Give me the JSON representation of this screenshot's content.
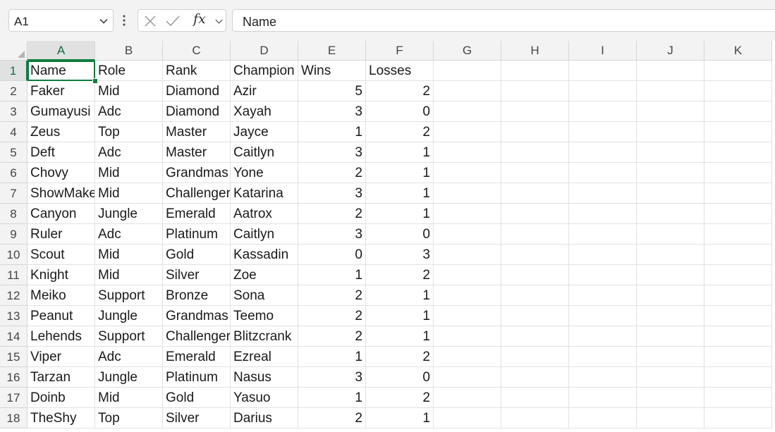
{
  "formula_bar": {
    "name_box": "A1",
    "fx_label": "fx",
    "formula_value": "Name"
  },
  "columns": [
    "A",
    "B",
    "C",
    "D",
    "E",
    "F",
    "G",
    "H",
    "I",
    "J",
    "K"
  ],
  "rows": [
    {
      "num": "1",
      "cells": [
        "Name",
        "Role",
        "Rank",
        "Champion",
        "Wins",
        "Losses"
      ]
    },
    {
      "num": "2",
      "cells": [
        "Faker",
        "Mid",
        "Diamond",
        "Azir",
        "5",
        "2"
      ]
    },
    {
      "num": "3",
      "cells": [
        "Gumayusi",
        "Adc",
        "Diamond",
        "Xayah",
        "3",
        "0"
      ]
    },
    {
      "num": "4",
      "cells": [
        "Zeus",
        "Top",
        "Master",
        "Jayce",
        "1",
        "2"
      ]
    },
    {
      "num": "5",
      "cells": [
        "Deft",
        "Adc",
        "Master",
        "Caitlyn",
        "3",
        "1"
      ]
    },
    {
      "num": "6",
      "cells": [
        "Chovy",
        "Mid",
        "Grandmas",
        "Yone",
        "2",
        "1"
      ]
    },
    {
      "num": "7",
      "cells": [
        "ShowMake",
        "Mid",
        "Challenger",
        "Katarina",
        "3",
        "1"
      ]
    },
    {
      "num": "8",
      "cells": [
        "Canyon",
        "Jungle",
        "Emerald",
        "Aatrox",
        "2",
        "1"
      ]
    },
    {
      "num": "9",
      "cells": [
        "Ruler",
        "Adc",
        "Platinum",
        "Caitlyn",
        "3",
        "0"
      ]
    },
    {
      "num": "10",
      "cells": [
        "Scout",
        "Mid",
        "Gold",
        "Kassadin",
        "0",
        "3"
      ]
    },
    {
      "num": "11",
      "cells": [
        "Knight",
        "Mid",
        "Silver",
        "Zoe",
        "1",
        "2"
      ]
    },
    {
      "num": "12",
      "cells": [
        "Meiko",
        "Support",
        "Bronze",
        "Sona",
        "2",
        "1"
      ]
    },
    {
      "num": "13",
      "cells": [
        "Peanut",
        "Jungle",
        "Grandmas",
        "Teemo",
        "2",
        "1"
      ]
    },
    {
      "num": "14",
      "cells": [
        "Lehends",
        "Support",
        "Challenger",
        "Blitzcrank",
        "2",
        "1"
      ]
    },
    {
      "num": "15",
      "cells": [
        "Viper",
        "Adc",
        "Emerald",
        "Ezreal",
        "1",
        "2"
      ]
    },
    {
      "num": "16",
      "cells": [
        "Tarzan",
        "Jungle",
        "Platinum",
        "Nasus",
        "3",
        "0"
      ]
    },
    {
      "num": "17",
      "cells": [
        "Doinb",
        "Mid",
        "Gold",
        "Yasuo",
        "1",
        "2"
      ]
    },
    {
      "num": "18",
      "cells": [
        "TheShy",
        "Top",
        "Silver",
        "Darius",
        "2",
        "1"
      ]
    }
  ],
  "selected_cell": "A1",
  "accent_color": "#107c41",
  "icons": [
    "chevron-down-icon",
    "more-vertical-icon",
    "cancel-x-icon",
    "confirm-check-icon",
    "insert-function-icon"
  ]
}
